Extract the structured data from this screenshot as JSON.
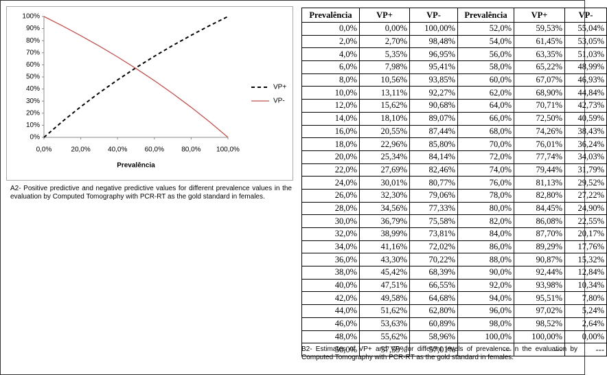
{
  "chart_data": {
    "type": "line",
    "x_label": "Prevalência",
    "x": [
      0,
      10,
      20,
      30,
      40,
      50,
      60,
      70,
      80,
      90,
      100
    ],
    "series": [
      {
        "name": "VP+",
        "color": "#000000",
        "dash": true,
        "values": [
          0,
          13.11,
          25.34,
          36.79,
          47.51,
          57.59,
          67.07,
          76.01,
          84.45,
          92.44,
          100
        ]
      },
      {
        "name": "VP-",
        "color": "#c0504d",
        "dash": false,
        "values": [
          100,
          92.27,
          84.14,
          75.58,
          66.55,
          57.01,
          46.93,
          36.24,
          24.9,
          12.84,
          0
        ]
      }
    ],
    "xlim": [
      0,
      100
    ],
    "xticks": [
      {
        "value": 0,
        "label": "0,0%"
      },
      {
        "value": 20,
        "label": "20,0%"
      },
      {
        "value": 40,
        "label": "40,0%"
      },
      {
        "value": 60,
        "label": "60,0%"
      },
      {
        "value": 80,
        "label": "80,0%"
      },
      {
        "value": 100,
        "label": "100,0%"
      }
    ],
    "ylim": [
      0,
      100
    ],
    "yticks": [
      {
        "value": 0,
        "label": "0%"
      },
      {
        "value": 10,
        "label": "10%"
      },
      {
        "value": 20,
        "label": "20%"
      },
      {
        "value": 30,
        "label": "30%"
      },
      {
        "value": 40,
        "label": "40%"
      },
      {
        "value": 50,
        "label": "50%"
      },
      {
        "value": 60,
        "label": "60%"
      },
      {
        "value": 70,
        "label": "70%"
      },
      {
        "value": 80,
        "label": "80%"
      },
      {
        "value": 90,
        "label": "90%"
      },
      {
        "value": 100,
        "label": "100%"
      }
    ],
    "legend": "right"
  },
  "caption_a": "A2- Positive predictive and negative predictive values for different prevalence values in the evaluation by Computed Tomography with PCR-RT as the gold standard in females.",
  "table": {
    "header": [
      "Prevalência",
      "VP+",
      "VP-",
      "Prevalência",
      "VP+",
      "VP-"
    ],
    "rows": [
      [
        "0,0%",
        "0,00%",
        "100,00%",
        "52,0%",
        "59,53%",
        "55,04%"
      ],
      [
        "2,0%",
        "2,70%",
        "98,48%",
        "54,0%",
        "61,45%",
        "53,05%"
      ],
      [
        "4,0%",
        "5,35%",
        "96,95%",
        "56,0%",
        "63,35%",
        "51,03%"
      ],
      [
        "6,0%",
        "7,98%",
        "95,41%",
        "58,0%",
        "65,22%",
        "48,99%"
      ],
      [
        "8,0%",
        "10,56%",
        "93,85%",
        "60,0%",
        "67,07%",
        "46,93%"
      ],
      [
        "10,0%",
        "13,11%",
        "92,27%",
        "62,0%",
        "68,90%",
        "44,84%"
      ],
      [
        "12,0%",
        "15,62%",
        "90,68%",
        "64,0%",
        "70,71%",
        "42,73%"
      ],
      [
        "14,0%",
        "18,10%",
        "89,07%",
        "66,0%",
        "72,50%",
        "40,59%"
      ],
      [
        "16,0%",
        "20,55%",
        "87,44%",
        "68,0%",
        "74,26%",
        "38,43%"
      ],
      [
        "18,0%",
        "22,96%",
        "85,80%",
        "70,0%",
        "76,01%",
        "36,24%"
      ],
      [
        "20,0%",
        "25,34%",
        "84,14%",
        "72,0%",
        "77,74%",
        "34,03%"
      ],
      [
        "22,0%",
        "27,69%",
        "82,46%",
        "74,0%",
        "79,44%",
        "31,79%"
      ],
      [
        "24,0%",
        "30,01%",
        "80,77%",
        "76,0%",
        "81,13%",
        "29,52%"
      ],
      [
        "26,0%",
        "32,30%",
        "79,06%",
        "78,0%",
        "82,80%",
        "27,22%"
      ],
      [
        "28,0%",
        "34,56%",
        "77,33%",
        "80,0%",
        "84,45%",
        "24,90%"
      ],
      [
        "30,0%",
        "36,79%",
        "75,58%",
        "82,0%",
        "86,08%",
        "22,55%"
      ],
      [
        "32,0%",
        "38,99%",
        "73,81%",
        "84,0%",
        "87,70%",
        "20,17%"
      ],
      [
        "34,0%",
        "41,16%",
        "72,02%",
        "86,0%",
        "89,29%",
        "17,76%"
      ],
      [
        "36,0%",
        "43,30%",
        "70,22%",
        "88,0%",
        "90,87%",
        "15,32%"
      ],
      [
        "38,0%",
        "45,42%",
        "68,39%",
        "90,0%",
        "92,44%",
        "12,84%"
      ],
      [
        "40,0%",
        "47,51%",
        "66,55%",
        "92,0%",
        "93,98%",
        "10,34%"
      ],
      [
        "42,0%",
        "49,58%",
        "64,68%",
        "94,0%",
        "95,51%",
        "7,80%"
      ],
      [
        "44,0%",
        "51,62%",
        "62,80%",
        "96,0%",
        "97,02%",
        "5,24%"
      ],
      [
        "46,0%",
        "53,63%",
        "60,89%",
        "98,0%",
        "98,52%",
        "2,64%"
      ],
      [
        "48,0%",
        "55,62%",
        "58,96%",
        "100,0%",
        "100,00%",
        "0,00%"
      ],
      [
        "50,0%",
        "57,59%",
        "57,01%",
        "---",
        "---",
        "---"
      ]
    ]
  },
  "caption_b": "B2- Estimates of VP+ and VP- for different levels of prevalence in the evaluation by Computed Tomography with PCR-RT as the gold standard in females."
}
